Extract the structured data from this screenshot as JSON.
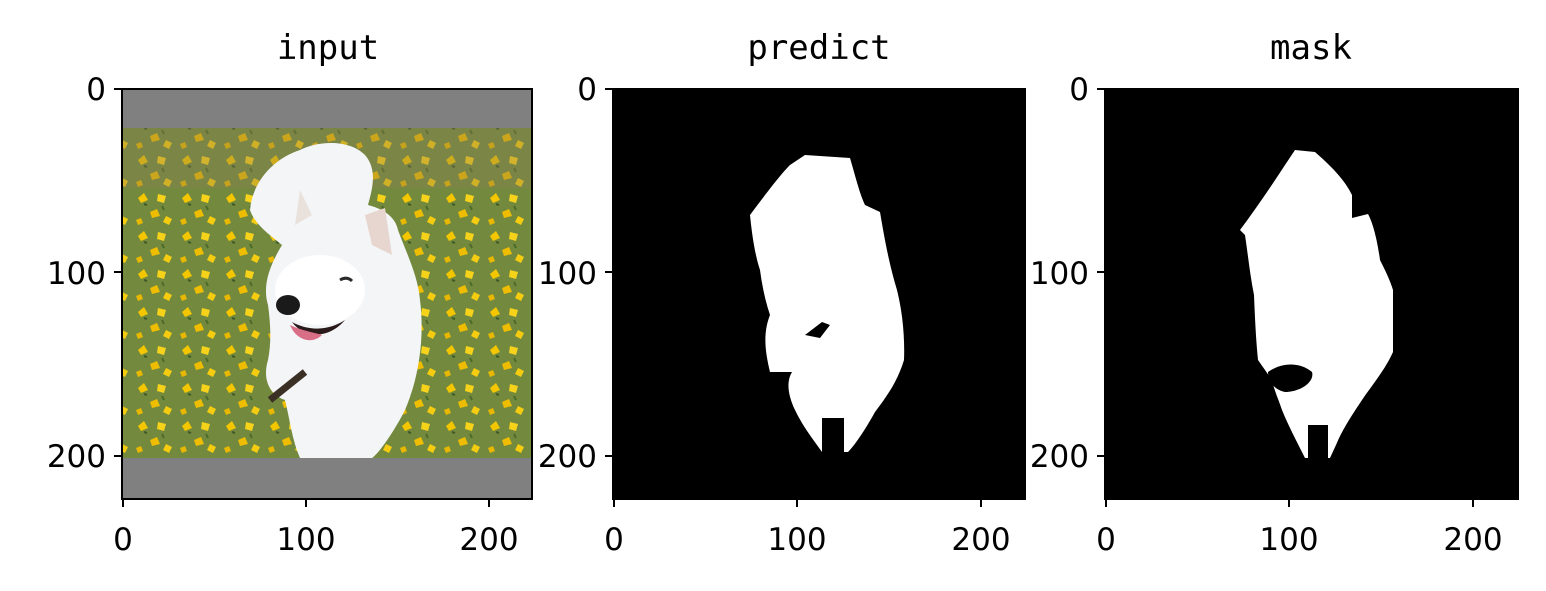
{
  "figure": {
    "panels": [
      {
        "title": "input",
        "image_subject": "white fluffy dog sitting on grass covered with yellow flowers, letterboxed with gray bars",
        "x_ticks": [
          "0",
          "100",
          "200"
        ],
        "y_ticks": [
          "0",
          "100",
          "200"
        ],
        "x_range": [
          0,
          224
        ],
        "y_range": [
          0,
          224
        ]
      },
      {
        "title": "predict",
        "image_subject": "binary segmentation mask predicted (white dog silhouette on black)",
        "x_ticks": [
          "0",
          "100",
          "200"
        ],
        "y_ticks": [
          "0",
          "100",
          "200"
        ],
        "x_range": [
          0,
          224
        ],
        "y_range": [
          0,
          224
        ]
      },
      {
        "title": "mask",
        "image_subject": "ground-truth binary segmentation mask (white dog silhouette on black)",
        "x_ticks": [
          "0",
          "100",
          "200"
        ],
        "y_ticks": [
          "0",
          "100",
          "200"
        ],
        "x_range": [
          0,
          224
        ],
        "y_range": [
          0,
          224
        ]
      }
    ],
    "colors": {
      "letterbox_gray": "#808080",
      "mask_foreground": "#ffffff",
      "mask_background": "#000000",
      "grass": "#6f8a3a",
      "flower": "#f2c400"
    }
  }
}
